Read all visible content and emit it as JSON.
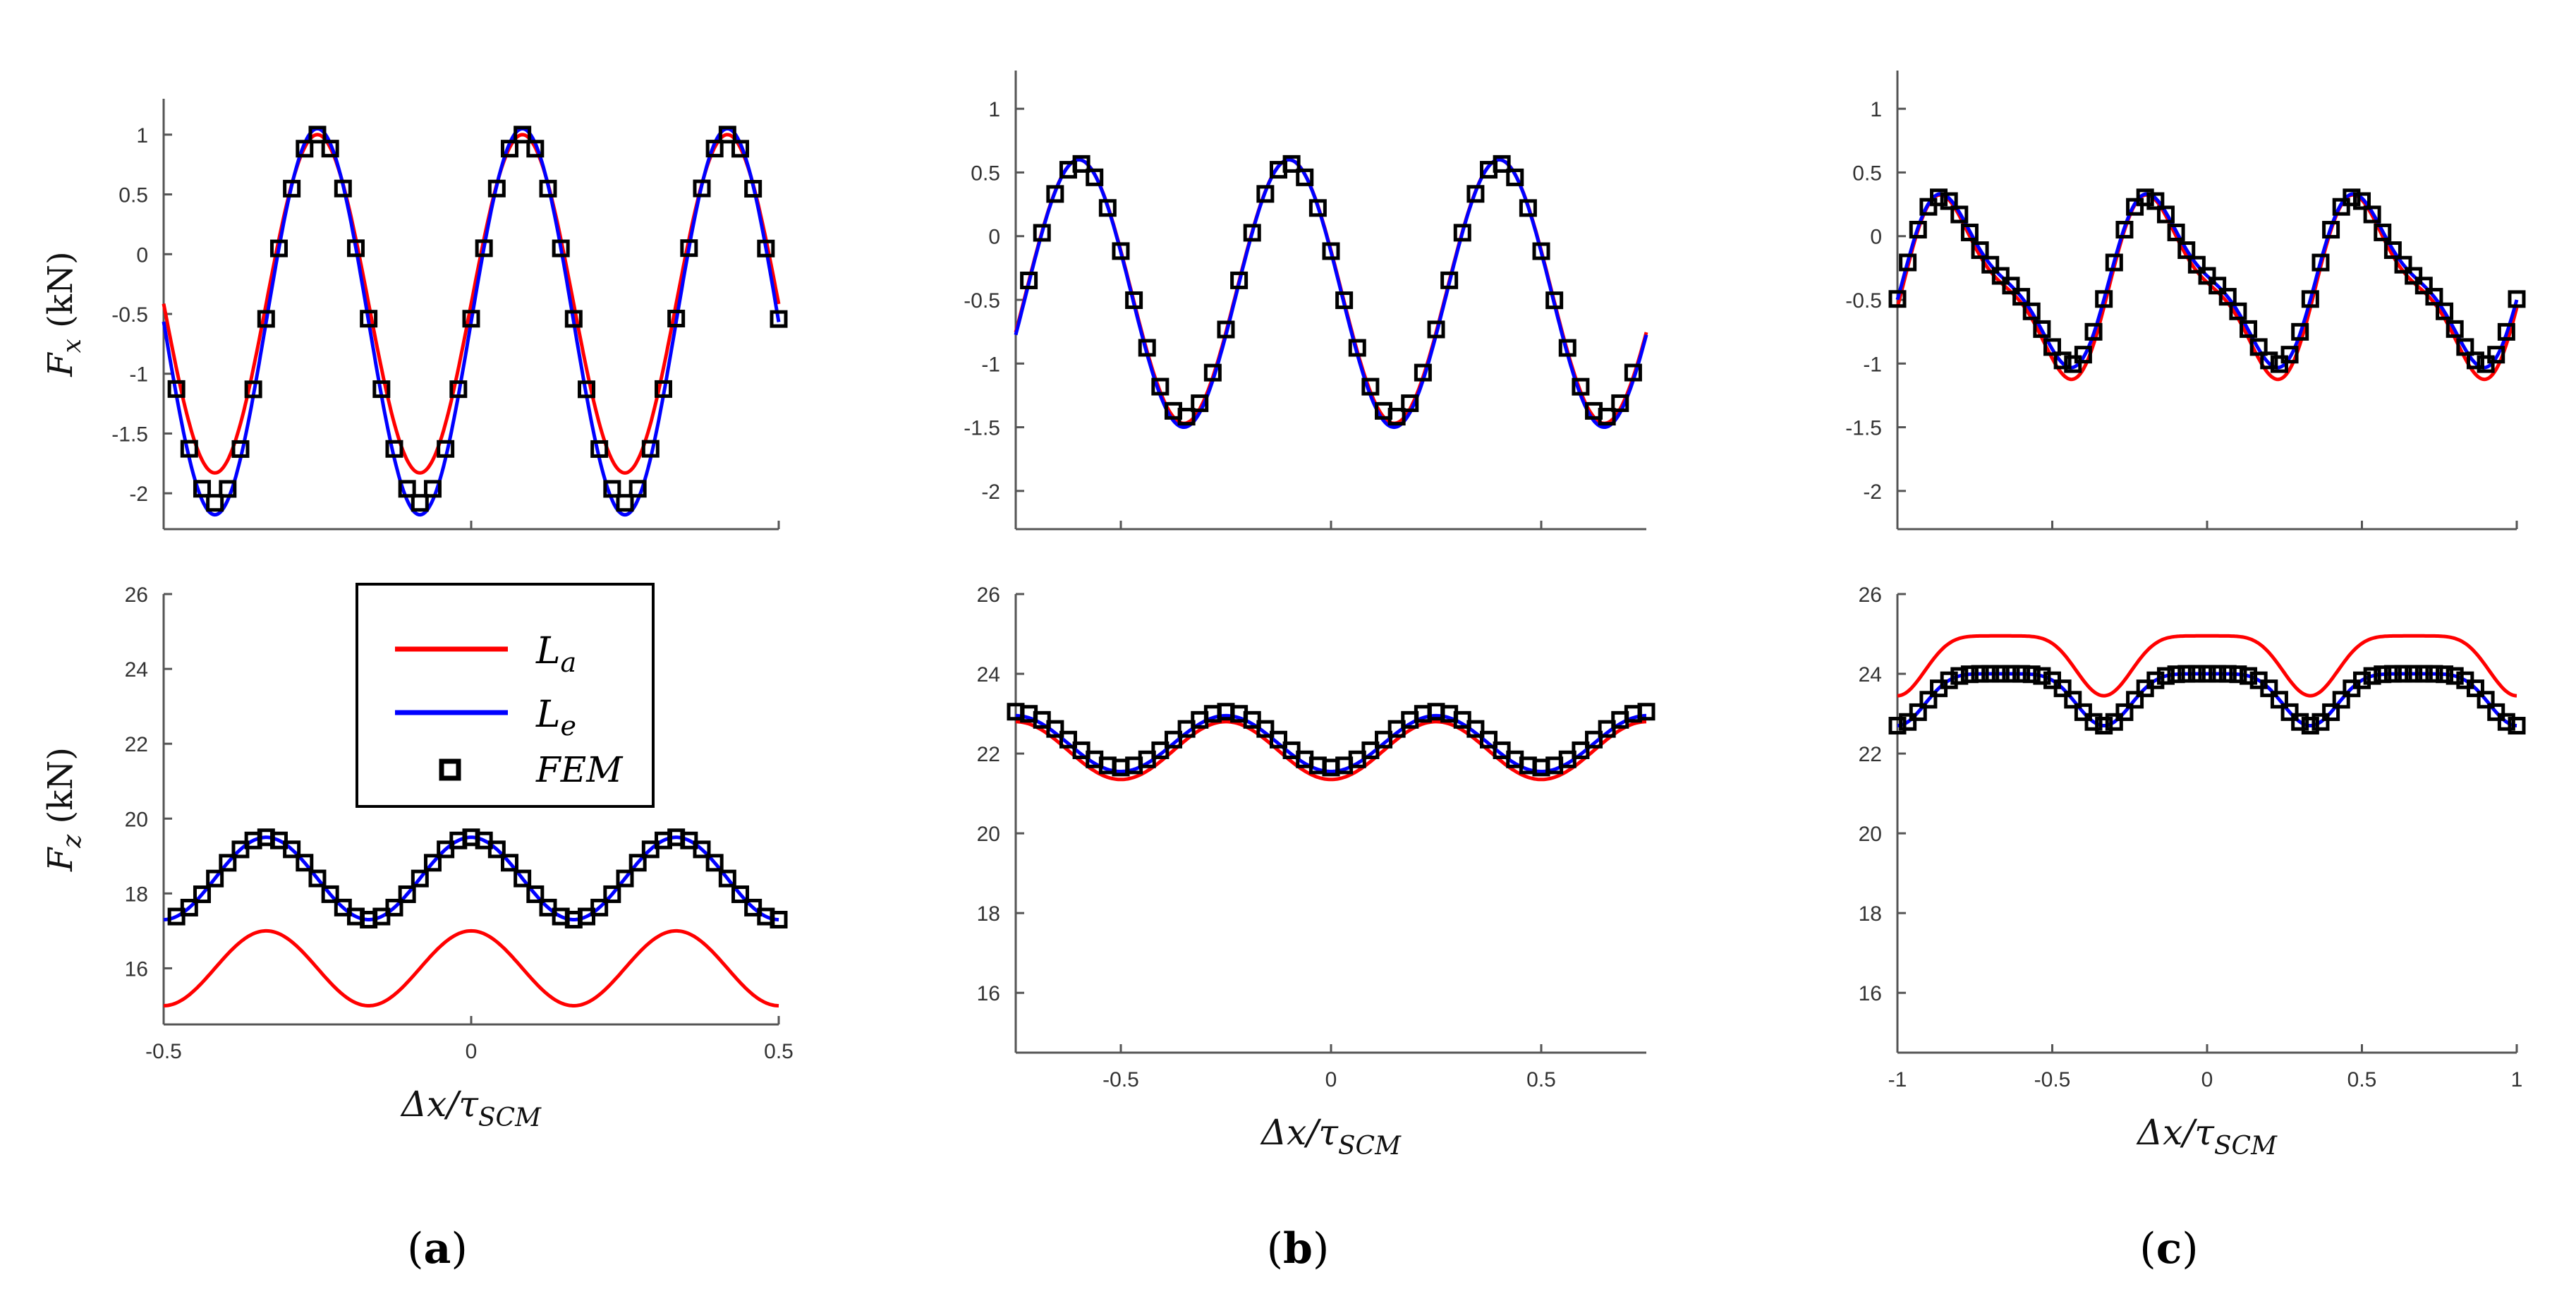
{
  "figure": {
    "legend": {
      "entries": [
        {
          "symbol": "L",
          "subscript": "a",
          "color": "#ff0000",
          "marker": "line"
        },
        {
          "symbol": "L",
          "subscript": "e",
          "color": "#0000ff",
          "marker": "line"
        },
        {
          "symbol": "FEM",
          "subscript": "",
          "color": "#000000",
          "marker": "square"
        }
      ]
    },
    "colors": {
      "La": "#ff0000",
      "Le": "#0000ff",
      "FEM": "#000000",
      "axis": "#555555"
    }
  },
  "chart_data": [
    {
      "id": "a-top",
      "type": "line",
      "panel": "a",
      "ylabel_symbol": "F",
      "ylabel_sub": "x",
      "ylabel_unit": "(kN)",
      "xlim": [
        -0.5,
        0.5
      ],
      "ylim": [
        -2.3,
        1.3
      ],
      "xticks": [
        -0.5,
        0,
        0.5
      ],
      "xtick_labels": [
        "",
        "",
        ""
      ],
      "yticks": [
        1,
        0.5,
        0,
        -0.5,
        -1,
        -1.5,
        -2
      ],
      "ytick_labels": [
        "1",
        "0.5",
        "0",
        "-0.5",
        "-1",
        "-1.5",
        "-2"
      ],
      "period": 0.3333,
      "phase_x": -0.25,
      "series": [
        {
          "name": "La",
          "kind": "sine",
          "max": 1.0,
          "min": -1.83,
          "x_start": -0.5,
          "x_end": 0.5
        },
        {
          "name": "Le",
          "kind": "sine",
          "max": 1.05,
          "min": -2.18,
          "x_start": -0.5,
          "x_end": 0.5
        },
        {
          "name": "FEM",
          "kind": "markers",
          "max": 1.0,
          "min": -2.08,
          "x_start": -0.4792,
          "x_end": 0.5,
          "n": 48
        }
      ]
    },
    {
      "id": "a-bottom",
      "type": "line",
      "panel": "a",
      "ylabel_symbol": "F",
      "ylabel_sub": "z",
      "ylabel_unit": "(kN)",
      "xlim": [
        -0.5,
        0.5
      ],
      "ylim": [
        14.5,
        26
      ],
      "xticks": [
        -0.5,
        0,
        0.5
      ],
      "xtick_labels": [
        "-0.5",
        "0",
        "0.5"
      ],
      "yticks": [
        26,
        24,
        22,
        20,
        18,
        16
      ],
      "ytick_labels": [
        "26",
        "24",
        "22",
        "20",
        "18",
        "16"
      ],
      "xlabel": "Δx/τ",
      "xlabel_sub": "SCM",
      "period": 0.3333,
      "phase_x": 0,
      "series": [
        {
          "name": "La",
          "kind": "sine",
          "max": 17.0,
          "min": 15.0,
          "x_start": -0.5,
          "x_end": 0.5
        },
        {
          "name": "Le",
          "kind": "sine",
          "max": 19.5,
          "min": 17.3,
          "x_start": -0.5,
          "x_end": 0.5
        },
        {
          "name": "FEM",
          "kind": "markers",
          "max": 19.5,
          "min": 17.3,
          "x_start": -0.4792,
          "x_end": 0.5,
          "n": 48
        }
      ]
    },
    {
      "id": "b-top",
      "type": "line",
      "panel": "b",
      "ylabel_symbol": "",
      "ylabel_sub": "",
      "ylabel_unit": "",
      "xlim": [
        -0.75,
        0.75
      ],
      "ylim": [
        -2.3,
        1.3
      ],
      "xticks": [
        -0.5,
        0,
        0.5
      ],
      "xtick_labels": [
        "",
        "",
        ""
      ],
      "yticks": [
        1,
        0.5,
        0,
        -0.5,
        -1,
        -1.5,
        -2
      ],
      "ytick_labels": [
        "1",
        "0.5",
        "0",
        "-0.5",
        "-1",
        "-1.5",
        "-2"
      ],
      "period": 0.5,
      "phase_x": -0.1,
      "series": [
        {
          "name": "La",
          "kind": "sine",
          "max": 0.6,
          "min": -1.47,
          "x_start": -0.75,
          "x_end": 0.75
        },
        {
          "name": "Le",
          "kind": "sine",
          "max": 0.6,
          "min": -1.5,
          "x_start": -0.75,
          "x_end": 0.75
        },
        {
          "name": "FEM",
          "kind": "markers",
          "max": 0.57,
          "min": -1.42,
          "x_start": -0.7188,
          "x_end": 0.7188,
          "n": 47
        }
      ]
    },
    {
      "id": "b-bottom",
      "type": "line",
      "panel": "b",
      "ylabel_symbol": "",
      "ylabel_sub": "",
      "ylabel_unit": "",
      "xlim": [
        -0.75,
        0.75
      ],
      "ylim": [
        14.5,
        26
      ],
      "xticks": [
        -0.5,
        0,
        0.5
      ],
      "xtick_labels": [
        "-0.5",
        "0",
        "0.5"
      ],
      "yticks": [
        26,
        24,
        22,
        20,
        18,
        16
      ],
      "ytick_labels": [
        "26",
        "24",
        "22",
        "20",
        "18",
        "16"
      ],
      "xlabel": "Δx/τ",
      "xlabel_sub": "SCM",
      "period": 0.5,
      "phase_x": -0.25,
      "series": [
        {
          "name": "La",
          "kind": "sine",
          "max": 22.8,
          "min": 21.35,
          "x_start": -0.75,
          "x_end": 0.75
        },
        {
          "name": "Le",
          "kind": "sine",
          "max": 22.95,
          "min": 21.55,
          "x_start": -0.75,
          "x_end": 0.75
        },
        {
          "name": "FEM",
          "kind": "markers",
          "max": 23.05,
          "min": 21.65,
          "x_start": -0.75,
          "x_end": 0.75,
          "n": 49
        }
      ]
    },
    {
      "id": "c-top",
      "type": "line",
      "panel": "c",
      "ylabel_symbol": "",
      "ylabel_sub": "",
      "ylabel_unit": "",
      "xlim": [
        -1,
        1
      ],
      "ylim": [
        -2.3,
        1.3
      ],
      "xticks": [
        -1,
        -0.5,
        0,
        0.5,
        1
      ],
      "xtick_labels": [
        "",
        "",
        "",
        "",
        ""
      ],
      "yticks": [
        1,
        0.5,
        0,
        -0.5,
        -1,
        -1.5,
        -2
      ],
      "ytick_labels": [
        "1",
        "0.5",
        "0",
        "-0.5",
        "-1",
        "-1.5",
        "-2"
      ],
      "period": 0.6667,
      "phase_x": -0.15,
      "series": [
        {
          "name": "La",
          "kind": "wave2",
          "mean": -0.4,
          "a1": 0.63,
          "a2": 0.2,
          "shift2": 0.25,
          "x_start": -1,
          "x_end": 1
        },
        {
          "name": "Le",
          "kind": "wave2",
          "mean": -0.35,
          "a1": 0.6,
          "a2": 0.18,
          "shift2": 0.25,
          "x_start": -1,
          "x_end": 1
        },
        {
          "name": "FEM",
          "kind": "markers2",
          "mean": -0.35,
          "a1": 0.58,
          "a2": 0.17,
          "shift2": 0.25,
          "x_start": -1,
          "x_end": 1,
          "n": 61
        }
      ]
    },
    {
      "id": "c-bottom",
      "type": "line",
      "panel": "c",
      "ylabel_symbol": "",
      "ylabel_sub": "",
      "ylabel_unit": "",
      "xlim": [
        -1,
        1
      ],
      "ylim": [
        14.5,
        26
      ],
      "xticks": [
        -1,
        -0.5,
        0,
        0.5,
        1
      ],
      "xtick_labels": [
        "-1",
        "-0.5",
        "0",
        "0.5",
        "1"
      ],
      "yticks": [
        26,
        24,
        22,
        20,
        18,
        16
      ],
      "ytick_labels": [
        "26",
        "24",
        "22",
        "20",
        "18",
        "16"
      ],
      "xlabel": "Δx/τ",
      "xlabel_sub": "SCM",
      "period": 0.6667,
      "phase_x": -0.3333,
      "series": [
        {
          "name": "La",
          "kind": "flat",
          "max": 24.95,
          "min": 23.45,
          "x_start": -1,
          "x_end": 1
        },
        {
          "name": "Le",
          "kind": "flat",
          "max": 24.0,
          "min": 22.7,
          "x_start": -1,
          "x_end": 1
        },
        {
          "name": "FEM",
          "kind": "flatmarkers",
          "max": 24.0,
          "min": 22.7,
          "x_start": -1,
          "x_end": 1,
          "n": 61
        }
      ]
    }
  ],
  "captions": [
    {
      "panel": "a",
      "text": "a"
    },
    {
      "panel": "b",
      "text": "b"
    },
    {
      "panel": "c",
      "text": "c"
    }
  ]
}
